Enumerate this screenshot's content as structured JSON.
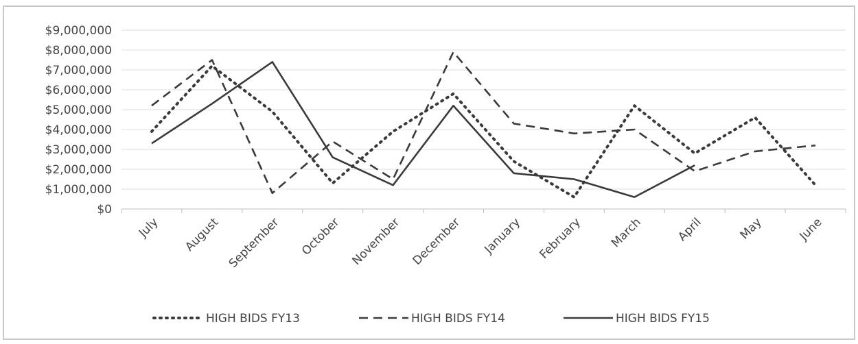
{
  "chart_data": {
    "type": "line",
    "title": "",
    "xlabel": "",
    "ylabel": "",
    "categories": [
      "July",
      "August",
      "September",
      "October",
      "November",
      "December",
      "January",
      "February",
      "March",
      "April",
      "May",
      "June"
    ],
    "ylim": [
      0,
      9000000
    ],
    "yticks": [
      "$0",
      "$1,000,000",
      "$2,000,000",
      "$3,000,000",
      "$4,000,000",
      "$5,000,000",
      "$6,000,000",
      "$7,000,000",
      "$8,000,000",
      "$9,000,000"
    ],
    "grid": true,
    "legend_position": "bottom",
    "series": [
      {
        "name": "HIGH BIDS FY13",
        "style": "dotted",
        "color": "#3a3a3a",
        "values": [
          3900000,
          7200000,
          4900000,
          1300000,
          3900000,
          5800000,
          2400000,
          600000,
          5200000,
          2800000,
          4600000,
          1200000
        ]
      },
      {
        "name": "HIGH BIDS FY14",
        "style": "dashed",
        "color": "#3a3a3a",
        "values": [
          5200000,
          7500000,
          800000,
          3400000,
          1500000,
          7900000,
          4300000,
          3800000,
          4000000,
          1900000,
          2900000,
          3200000
        ]
      },
      {
        "name": "HIGH BIDS FY15",
        "style": "solid",
        "color": "#3a3a3a",
        "values": [
          3300000,
          5300000,
          7400000,
          2600000,
          1200000,
          5200000,
          1800000,
          1500000,
          600000,
          2200000,
          null,
          null
        ]
      }
    ]
  }
}
